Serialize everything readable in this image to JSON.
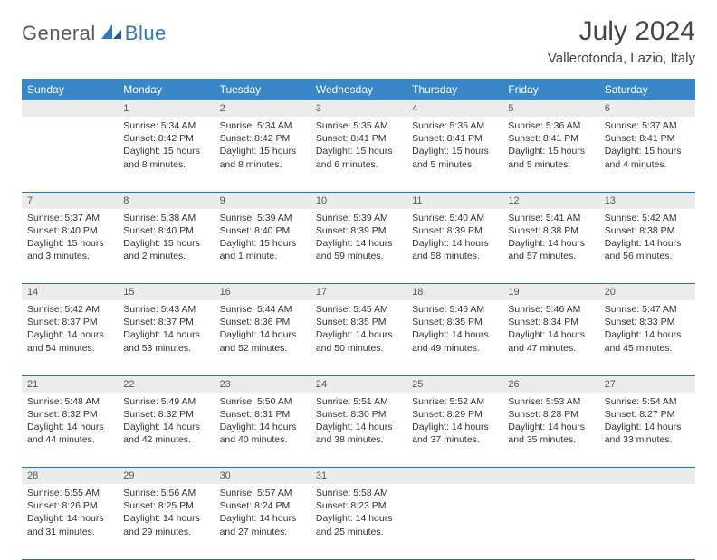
{
  "logo": {
    "text1": "General",
    "text2": "Blue"
  },
  "header": {
    "title": "July 2024",
    "subtitle": "Vallerotonda, Lazio, Italy"
  },
  "colors": {
    "header_bg": "#3a87c8",
    "header_text": "#ffffff",
    "daynum_bg": "#ececec",
    "row_border": "#2f6fa8",
    "logo_gray": "#5a5a5a",
    "logo_blue": "#2f78bf"
  },
  "weekdays": [
    "Sunday",
    "Monday",
    "Tuesday",
    "Wednesday",
    "Thursday",
    "Friday",
    "Saturday"
  ],
  "days": {
    "1": {
      "sunrise": "5:34 AM",
      "sunset": "8:42 PM",
      "daylight": "15 hours and 8 minutes."
    },
    "2": {
      "sunrise": "5:34 AM",
      "sunset": "8:42 PM",
      "daylight": "15 hours and 8 minutes."
    },
    "3": {
      "sunrise": "5:35 AM",
      "sunset": "8:41 PM",
      "daylight": "15 hours and 6 minutes."
    },
    "4": {
      "sunrise": "5:35 AM",
      "sunset": "8:41 PM",
      "daylight": "15 hours and 5 minutes."
    },
    "5": {
      "sunrise": "5:36 AM",
      "sunset": "8:41 PM",
      "daylight": "15 hours and 5 minutes."
    },
    "6": {
      "sunrise": "5:37 AM",
      "sunset": "8:41 PM",
      "daylight": "15 hours and 4 minutes."
    },
    "7": {
      "sunrise": "5:37 AM",
      "sunset": "8:40 PM",
      "daylight": "15 hours and 3 minutes."
    },
    "8": {
      "sunrise": "5:38 AM",
      "sunset": "8:40 PM",
      "daylight": "15 hours and 2 minutes."
    },
    "9": {
      "sunrise": "5:39 AM",
      "sunset": "8:40 PM",
      "daylight": "15 hours and 1 minute."
    },
    "10": {
      "sunrise": "5:39 AM",
      "sunset": "8:39 PM",
      "daylight": "14 hours and 59 minutes."
    },
    "11": {
      "sunrise": "5:40 AM",
      "sunset": "8:39 PM",
      "daylight": "14 hours and 58 minutes."
    },
    "12": {
      "sunrise": "5:41 AM",
      "sunset": "8:38 PM",
      "daylight": "14 hours and 57 minutes."
    },
    "13": {
      "sunrise": "5:42 AM",
      "sunset": "8:38 PM",
      "daylight": "14 hours and 56 minutes."
    },
    "14": {
      "sunrise": "5:42 AM",
      "sunset": "8:37 PM",
      "daylight": "14 hours and 54 minutes."
    },
    "15": {
      "sunrise": "5:43 AM",
      "sunset": "8:37 PM",
      "daylight": "14 hours and 53 minutes."
    },
    "16": {
      "sunrise": "5:44 AM",
      "sunset": "8:36 PM",
      "daylight": "14 hours and 52 minutes."
    },
    "17": {
      "sunrise": "5:45 AM",
      "sunset": "8:35 PM",
      "daylight": "14 hours and 50 minutes."
    },
    "18": {
      "sunrise": "5:46 AM",
      "sunset": "8:35 PM",
      "daylight": "14 hours and 49 minutes."
    },
    "19": {
      "sunrise": "5:46 AM",
      "sunset": "8:34 PM",
      "daylight": "14 hours and 47 minutes."
    },
    "20": {
      "sunrise": "5:47 AM",
      "sunset": "8:33 PM",
      "daylight": "14 hours and 45 minutes."
    },
    "21": {
      "sunrise": "5:48 AM",
      "sunset": "8:32 PM",
      "daylight": "14 hours and 44 minutes."
    },
    "22": {
      "sunrise": "5:49 AM",
      "sunset": "8:32 PM",
      "daylight": "14 hours and 42 minutes."
    },
    "23": {
      "sunrise": "5:50 AM",
      "sunset": "8:31 PM",
      "daylight": "14 hours and 40 minutes."
    },
    "24": {
      "sunrise": "5:51 AM",
      "sunset": "8:30 PM",
      "daylight": "14 hours and 38 minutes."
    },
    "25": {
      "sunrise": "5:52 AM",
      "sunset": "8:29 PM",
      "daylight": "14 hours and 37 minutes."
    },
    "26": {
      "sunrise": "5:53 AM",
      "sunset": "8:28 PM",
      "daylight": "14 hours and 35 minutes."
    },
    "27": {
      "sunrise": "5:54 AM",
      "sunset": "8:27 PM",
      "daylight": "14 hours and 33 minutes."
    },
    "28": {
      "sunrise": "5:55 AM",
      "sunset": "8:26 PM",
      "daylight": "14 hours and 31 minutes."
    },
    "29": {
      "sunrise": "5:56 AM",
      "sunset": "8:25 PM",
      "daylight": "14 hours and 29 minutes."
    },
    "30": {
      "sunrise": "5:57 AM",
      "sunset": "8:24 PM",
      "daylight": "14 hours and 27 minutes."
    },
    "31": {
      "sunrise": "5:58 AM",
      "sunset": "8:23 PM",
      "daylight": "14 hours and 25 minutes."
    }
  },
  "grid": [
    [
      null,
      "1",
      "2",
      "3",
      "4",
      "5",
      "6"
    ],
    [
      "7",
      "8",
      "9",
      "10",
      "11",
      "12",
      "13"
    ],
    [
      "14",
      "15",
      "16",
      "17",
      "18",
      "19",
      "20"
    ],
    [
      "21",
      "22",
      "23",
      "24",
      "25",
      "26",
      "27"
    ],
    [
      "28",
      "29",
      "30",
      "31",
      null,
      null,
      null
    ]
  ],
  "labels": {
    "sunrise": "Sunrise:",
    "sunset": "Sunset:",
    "daylight": "Daylight:"
  }
}
